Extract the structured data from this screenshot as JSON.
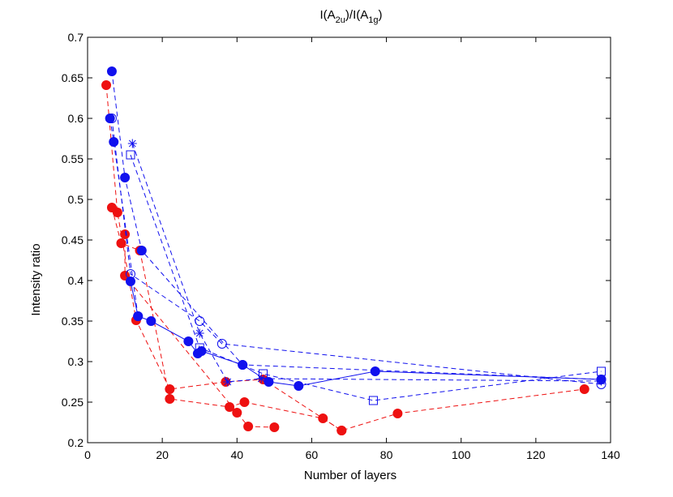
{
  "chart_data": {
    "type": "scatter",
    "title": "I(A2u)/I(A1g)",
    "title_parts": {
      "prefix": "I(A",
      "sub1": "2u",
      "middle": ")/I(A",
      "sub2": "1g",
      "suffix": ")"
    },
    "xlabel": "Number of layers",
    "ylabel": "Intensity ratio",
    "xlim": [
      0,
      140
    ],
    "ylim": [
      0.2,
      0.7
    ],
    "xticks": [
      0,
      20,
      40,
      60,
      80,
      100,
      120,
      140
    ],
    "yticks": [
      0.2,
      0.25,
      0.3,
      0.35,
      0.4,
      0.45,
      0.5,
      0.55,
      0.6,
      0.65,
      0.7
    ],
    "xtick_labels": [
      "0",
      "20",
      "40",
      "60",
      "80",
      "100",
      "120",
      "140"
    ],
    "ytick_labels": [
      "0.2",
      "0.25",
      "0.3",
      "0.35",
      "0.4",
      "0.45",
      "0.5",
      "0.55",
      "0.6",
      "0.65",
      "0.7"
    ],
    "grid": false,
    "colors": {
      "red": "#ee1111",
      "blue": "#1111ee"
    },
    "series": [
      {
        "name": "red dashed (filled circles)",
        "color": "#ee1111",
        "marker": "filled-circle",
        "line": "dashed",
        "x": [
          5,
          8,
          13,
          22,
          37,
          47,
          68,
          83,
          133
        ],
        "y": [
          0.641,
          0.484,
          0.351,
          0.266,
          0.275,
          0.278,
          0.215,
          0.236,
          0.266
        ]
      },
      {
        "name": "red dashed 2 (filled circles)",
        "color": "#ee1111",
        "marker": "filled-circle",
        "line": "dashed",
        "x": [
          6.5,
          9,
          14,
          22,
          38,
          42,
          63,
          68
        ],
        "y": [
          0.49,
          0.446,
          0.437,
          0.254,
          0.244,
          0.25,
          0.23,
          0.215
        ]
      },
      {
        "name": "red dashed 3 (filled circles)",
        "color": "#ee1111",
        "marker": "filled-circle",
        "line": "dashed",
        "x": [
          10,
          10,
          40,
          43,
          50
        ],
        "y": [
          0.457,
          0.406,
          0.237,
          0.22,
          0.219
        ]
      },
      {
        "name": "blue solid (filled circles)",
        "color": "#1111ee",
        "marker": "filled-circle",
        "line": "solid",
        "x": [
          11.5,
          13.5,
          17,
          27,
          29.5,
          30.5,
          41.5,
          48.5,
          56.5,
          77,
          137.5
        ],
        "y": [
          0.399,
          0.356,
          0.35,
          0.325,
          0.31,
          0.313,
          0.296,
          0.275,
          0.27,
          0.288,
          0.278
        ]
      },
      {
        "name": "blue dashed (filled circles)",
        "color": "#1111ee",
        "marker": "filled-circle",
        "line": "dashed",
        "x": [
          6.5,
          10,
          14.5,
          41.5,
          137.5
        ],
        "y": [
          0.658,
          0.527,
          0.437,
          0.296,
          0.278
        ]
      },
      {
        "name": "blue dashed 2 (filled circles)",
        "color": "#1111ee",
        "marker": "filled-circle",
        "line": "dashed",
        "x": [
          6,
          7,
          13.5
        ],
        "y": [
          0.6,
          0.571,
          0.356
        ]
      },
      {
        "name": "blue dashed (open circles)",
        "color": "#1111ee",
        "marker": "open-circle",
        "line": "dashed",
        "x": [
          6.5,
          11.5,
          30,
          36,
          137.5
        ],
        "y": [
          0.6,
          0.408,
          0.35,
          0.322,
          0.272
        ]
      },
      {
        "name": "blue dashed (stars)",
        "color": "#1111ee",
        "marker": "star",
        "line": "dashed",
        "x": [
          12,
          30,
          37.5,
          46.5,
          137.5
        ],
        "y": [
          0.569,
          0.335,
          0.275,
          0.279,
          0.276
        ]
      },
      {
        "name": "blue dashed (open squares)",
        "color": "#1111ee",
        "marker": "open-square",
        "line": "dashed",
        "x": [
          11.5,
          30,
          47,
          76.5,
          137.5
        ],
        "y": [
          0.555,
          0.317,
          0.285,
          0.252,
          0.288
        ]
      }
    ]
  }
}
